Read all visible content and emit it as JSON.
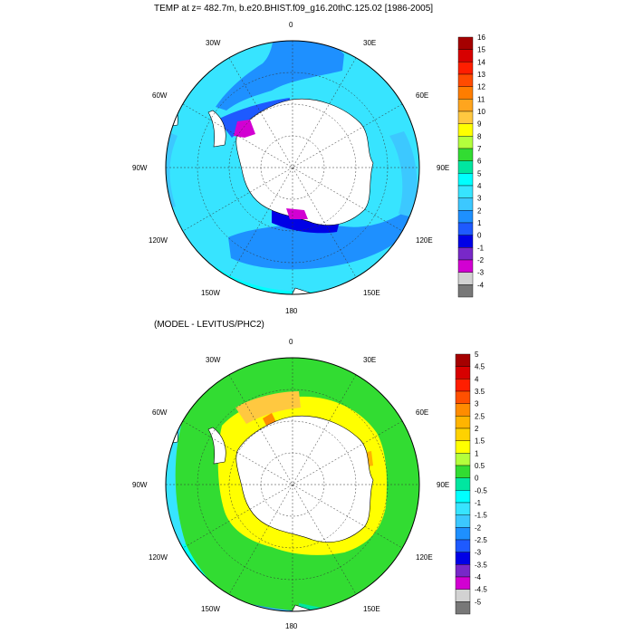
{
  "top_panel": {
    "title": "TEMP at z= 482.7m, b.e20.BHIST.f09_g16.20thC.125.02 [1986-2005]",
    "lon_labels": [
      "0",
      "30E",
      "60E",
      "90E",
      "120E",
      "150E",
      "180",
      "150W",
      "120W",
      "90W",
      "60W",
      "30W"
    ],
    "colorbar": {
      "labels": [
        "16",
        "15",
        "14",
        "13",
        "12",
        "11",
        "10",
        "9",
        "8",
        "7",
        "6",
        "5",
        "4",
        "3",
        "2",
        "1",
        "0",
        "-1",
        "-2",
        "-3",
        "-4"
      ],
      "colors": [
        "#a50000",
        "#d70000",
        "#ff1e00",
        "#ff4b00",
        "#ff7d00",
        "#ffa51e",
        "#ffc840",
        "#ffff00",
        "#b4ff3c",
        "#32dc32",
        "#00e6a0",
        "#00ffff",
        "#37e4ff",
        "#3cc8ff",
        "#1e90ff",
        "#1e5aff",
        "#0000e6",
        "#7828c8",
        "#d200d2",
        "#d2d2d2",
        "#787878"
      ]
    }
  },
  "bottom_panel": {
    "title": "(MODEL - LEVITUS/PHC2)",
    "lon_labels": [
      "0",
      "30E",
      "60E",
      "90E",
      "120E",
      "150E",
      "180",
      "150W",
      "120W",
      "90W",
      "60W",
      "30W"
    ],
    "colorbar": {
      "labels": [
        "5",
        "4.5",
        "4",
        "3.5",
        "3",
        "2.5",
        "2",
        "1.5",
        "1",
        "0.5",
        "0",
        "-0.5",
        "-1",
        "-1.5",
        "-2",
        "-2.5",
        "-3",
        "-3.5",
        "-4",
        "-4.5",
        "-5"
      ],
      "colors": [
        "#a50000",
        "#d70000",
        "#ff1e00",
        "#ff5000",
        "#ff8c00",
        "#ffb400",
        "#ffd200",
        "#ffff00",
        "#b4ff3c",
        "#32dc32",
        "#00e6a0",
        "#00ffff",
        "#37e4ff",
        "#3cc8ff",
        "#1e90ff",
        "#1e5aff",
        "#0000e6",
        "#7828c8",
        "#d200d2",
        "#d2d2d2",
        "#787878"
      ]
    }
  },
  "colors": {
    "land": "#ffffff",
    "coast": "#000000"
  }
}
